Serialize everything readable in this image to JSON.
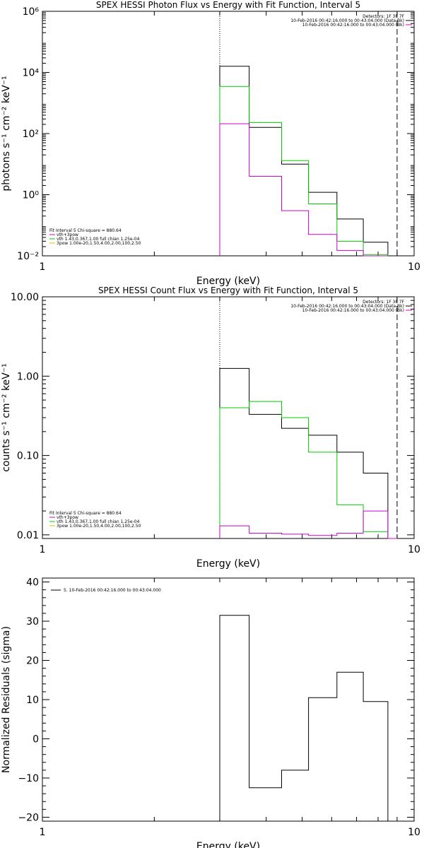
{
  "chart_data": [
    {
      "type": "line",
      "step": true,
      "title": "SPEX HESSI Photon Flux vs Energy with Fit Function, Interval 5",
      "xlabel": "Energy (keV)",
      "ylabel": "photons s⁻¹ cm⁻² keV⁻¹",
      "xscale": "log",
      "yscale": "log",
      "xlim": [
        1,
        10
      ],
      "ylim": [
        0.01,
        1000000
      ],
      "x_ticks": [
        {
          "value": 1,
          "label": "1"
        },
        {
          "value": 10,
          "label": "10"
        }
      ],
      "y_ticks": [
        {
          "value": 0.01,
          "label": "10⁻²"
        },
        {
          "value": 1,
          "label": "10⁰"
        },
        {
          "value": 100,
          "label": "10²"
        },
        {
          "value": 10000,
          "label": "10⁴"
        },
        {
          "value": 1000000,
          "label": "10⁶"
        }
      ],
      "info_lines": [
        "Detectors: 1F 3F 7F",
        "10-Feb-2016 00:42:16.000 to 00:43:04.000 (Data-Bk)",
        "10-Feb-2016 00:42:16.000 to 00:43:04.000 (Bk)"
      ],
      "info_colors": [
        "none",
        "#000000",
        "#d000d0"
      ],
      "fit_legend": [
        {
          "text": "Fit Interval 5   Chi-square = 880.64",
          "color": "none"
        },
        {
          "text": "vth+3pow",
          "color": "#d000d0"
        },
        {
          "text": "vth 1.43,0.367,1.00  full chian 1.25e-04",
          "color": "#00cc00"
        },
        {
          "text": "3pow 1.00e-20,1.50,4.00,2.00,100,2.50",
          "color": "#e0c000"
        }
      ],
      "vlines": [
        {
          "x": 3.0,
          "style": "dotted"
        },
        {
          "x": 9.0,
          "style": "dashed"
        }
      ],
      "edges": [
        3.0,
        3.6,
        4.4,
        5.2,
        6.2,
        7.3,
        8.5
      ],
      "series": [
        {
          "name": "Data-Bk",
          "color": "#000000",
          "values": [
            16000,
            160,
            10,
            1.2,
            0.16,
            0.028
          ]
        },
        {
          "name": "Fit",
          "color": "#00cc00",
          "values": [
            3500,
            230,
            13,
            0.5,
            0.03,
            0.011
          ]
        },
        {
          "name": "Bk",
          "color": "#d000d0",
          "values": [
            210,
            4.0,
            0.3,
            0.05,
            0.015,
            0.01
          ]
        }
      ]
    },
    {
      "type": "line",
      "step": true,
      "title": "SPEX HESSI Count Flux vs Energy with Fit Function, Interval 5",
      "xlabel": "Energy (keV)",
      "ylabel": "counts s⁻¹ cm⁻² keV⁻¹",
      "xscale": "log",
      "yscale": "log",
      "xlim": [
        1,
        10
      ],
      "ylim": [
        0.009,
        10
      ],
      "x_ticks": [
        {
          "value": 1,
          "label": "1"
        },
        {
          "value": 10,
          "label": "10"
        }
      ],
      "y_ticks": [
        {
          "value": 0.01,
          "label": "0.01"
        },
        {
          "value": 0.1,
          "label": "0.10"
        },
        {
          "value": 1,
          "label": "1.00"
        },
        {
          "value": 10,
          "label": "10.00"
        }
      ],
      "info_lines": [
        "Detectors: 1F 3F 7F",
        "10-Feb-2016 00:42:16.000 to 00:43:04.000 (Data-Bk)",
        "10-Feb-2016 00:42:16.000 to 00:43:04.000 (Bk)"
      ],
      "info_colors": [
        "none",
        "#000000",
        "#d000d0"
      ],
      "fit_legend": [
        {
          "text": "Fit Interval 5   Chi-square = 880.64",
          "color": "none"
        },
        {
          "text": "vth+3pow",
          "color": "#d000d0"
        },
        {
          "text": "vth 1.43,0.367,1.00  full chian 1.25e-04",
          "color": "#00cc00"
        },
        {
          "text": "3pow 1.00e-20,1.50,4.00,2.00,100,2.50",
          "color": "#e0c000"
        }
      ],
      "vlines": [
        {
          "x": 3.0,
          "style": "dotted"
        },
        {
          "x": 9.0,
          "style": "dashed"
        }
      ],
      "edges": [
        3.0,
        3.6,
        4.4,
        5.2,
        6.2,
        7.3,
        8.5,
        9.0
      ],
      "series": [
        {
          "name": "Data-Bk",
          "color": "#000000",
          "values": [
            1.25,
            0.33,
            0.22,
            0.18,
            0.11,
            0.06,
            0.009
          ]
        },
        {
          "name": "Fit",
          "color": "#00cc00",
          "values": [
            0.4,
            0.48,
            0.3,
            0.11,
            0.024,
            0.011,
            0.009
          ]
        },
        {
          "name": "Bk",
          "color": "#d000d0",
          "values": [
            0.013,
            0.0105,
            0.0102,
            0.0098,
            0.0105,
            0.02,
            0.009
          ]
        }
      ]
    },
    {
      "type": "line",
      "step": true,
      "title": "",
      "xlabel": "Energy (keV)",
      "ylabel": "Normalized Residuals (sigma)",
      "xscale": "log",
      "yscale": "linear",
      "xlim": [
        1,
        10
      ],
      "ylim": [
        -21,
        41
      ],
      "x_ticks": [
        {
          "value": 1,
          "label": "1"
        },
        {
          "value": 10,
          "label": "10"
        }
      ],
      "y_ticks": [
        {
          "value": -20,
          "label": "−20"
        },
        {
          "value": -10,
          "label": "−10"
        },
        {
          "value": 0,
          "label": "0"
        },
        {
          "value": 10,
          "label": "10"
        },
        {
          "value": 20,
          "label": "20"
        },
        {
          "value": 30,
          "label": "30"
        },
        {
          "value": 40,
          "label": "40"
        }
      ],
      "info_lines": [],
      "info_colors": [],
      "fit_legend": [],
      "residual_legend": "5. 10-Feb-2016 00:42:16.000 to 00:43:04.000",
      "vlines": [],
      "edges": [
        3.0,
        3.6,
        4.4,
        5.2,
        6.2,
        7.3,
        8.5,
        9.0
      ],
      "series": [
        {
          "name": "residuals",
          "color": "#000000",
          "values": [
            31.5,
            -12.5,
            -8,
            10.5,
            17,
            9.5,
            -21
          ]
        }
      ]
    }
  ]
}
